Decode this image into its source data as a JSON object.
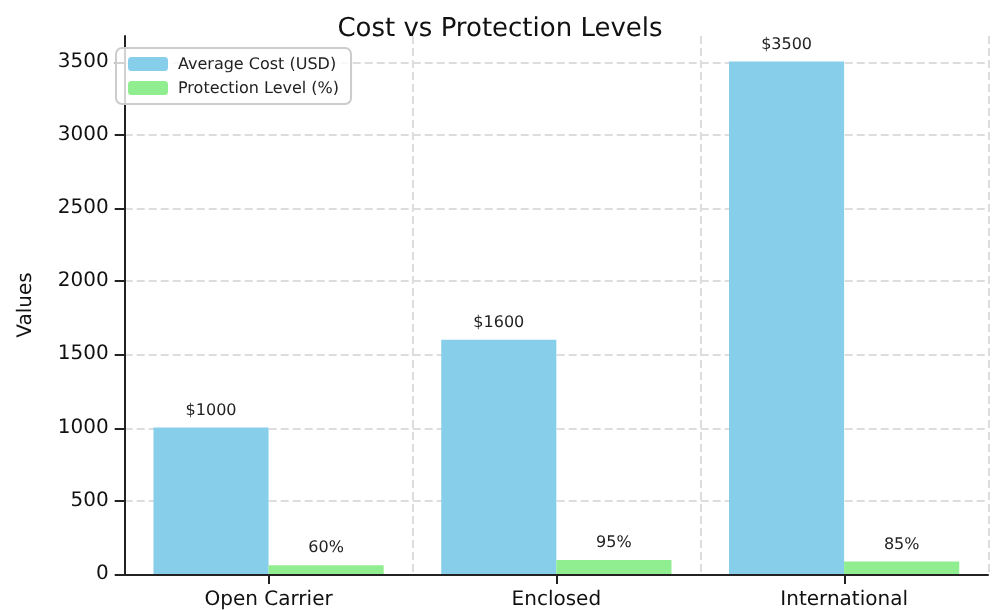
{
  "chart_data": {
    "type": "bar",
    "title": "Cost vs Protection Levels",
    "ylabel": "Values",
    "categories": [
      "Open Carrier",
      "Enclosed",
      "International"
    ],
    "series": [
      {
        "name": "Average Cost (USD)",
        "color": "#87ceeb",
        "values": [
          1000,
          1600,
          3500
        ],
        "value_labels": [
          "$1000",
          "$1600",
          "$3500"
        ]
      },
      {
        "name": "Protection Level (%)",
        "color": "#90ee90",
        "values": [
          60,
          95,
          85
        ],
        "value_labels": [
          "60%",
          "95%",
          "85%"
        ]
      }
    ],
    "ylim": [
      0,
      3675
    ],
    "yticks": [
      0,
      500,
      1000,
      1500,
      2000,
      2500,
      3000,
      3500
    ],
    "grid": true,
    "legend": "top left"
  }
}
